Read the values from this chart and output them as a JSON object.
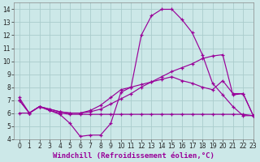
{
  "bg_color": "#cce8e8",
  "grid_color": "#aacccc",
  "line_color": "#990099",
  "xlabel": "Windchill (Refroidissement éolien,°C)",
  "xlim": [
    -0.5,
    23
  ],
  "ylim": [
    4,
    14.5
  ],
  "xticks": [
    0,
    1,
    2,
    3,
    4,
    5,
    6,
    7,
    8,
    9,
    10,
    11,
    12,
    13,
    14,
    15,
    16,
    17,
    18,
    19,
    20,
    21,
    22,
    23
  ],
  "yticks": [
    4,
    5,
    6,
    7,
    8,
    9,
    10,
    11,
    12,
    13,
    14
  ],
  "line1_x": [
    0,
    1,
    2,
    3,
    4,
    5,
    6,
    7,
    8,
    9,
    10,
    11,
    12,
    13,
    14,
    15,
    16,
    17,
    18,
    19,
    20,
    21,
    22,
    23
  ],
  "line1_y": [
    7.2,
    6.0,
    6.5,
    6.2,
    5.9,
    5.2,
    4.2,
    4.3,
    4.3,
    5.2,
    7.6,
    8.0,
    12.0,
    13.5,
    14.0,
    14.0,
    13.2,
    12.2,
    10.5,
    8.3,
    7.4,
    6.5,
    5.8,
    5.8
  ],
  "line2_x": [
    0,
    1,
    2,
    3,
    4,
    5,
    6,
    7,
    8,
    9,
    10,
    11,
    12,
    13,
    14,
    15,
    16,
    17,
    18,
    19,
    20,
    21,
    22,
    23
  ],
  "line2_y": [
    7.0,
    6.0,
    6.5,
    6.3,
    6.1,
    6.0,
    6.0,
    6.1,
    6.3,
    6.7,
    7.1,
    7.5,
    8.0,
    8.4,
    8.8,
    9.2,
    9.5,
    9.8,
    10.2,
    10.4,
    10.5,
    7.4,
    7.5,
    5.8
  ],
  "line3_x": [
    0,
    1,
    2,
    3,
    4,
    5,
    6,
    7,
    8,
    9,
    10,
    11,
    12,
    13,
    14,
    15,
    16,
    17,
    18,
    19,
    20,
    21,
    22,
    23
  ],
  "line3_y": [
    7.0,
    6.0,
    6.5,
    6.3,
    6.1,
    6.0,
    6.0,
    6.2,
    6.6,
    7.2,
    7.8,
    8.0,
    8.2,
    8.4,
    8.6,
    8.8,
    8.5,
    8.3,
    8.0,
    7.8,
    8.5,
    7.5,
    7.5,
    5.8
  ],
  "line4_x": [
    0,
    1,
    2,
    3,
    4,
    5,
    6,
    7,
    8,
    9,
    10,
    11,
    12,
    13,
    14,
    15,
    16,
    17,
    18,
    19,
    20,
    21,
    22,
    23
  ],
  "line4_y": [
    6.0,
    6.0,
    6.5,
    6.2,
    6.0,
    5.9,
    5.9,
    5.9,
    5.9,
    5.9,
    5.9,
    5.9,
    5.9,
    5.9,
    5.9,
    5.9,
    5.9,
    5.9,
    5.9,
    5.9,
    5.9,
    5.9,
    5.9,
    5.8
  ],
  "axis_fontsize": 6.5,
  "tick_fontsize": 5.5
}
